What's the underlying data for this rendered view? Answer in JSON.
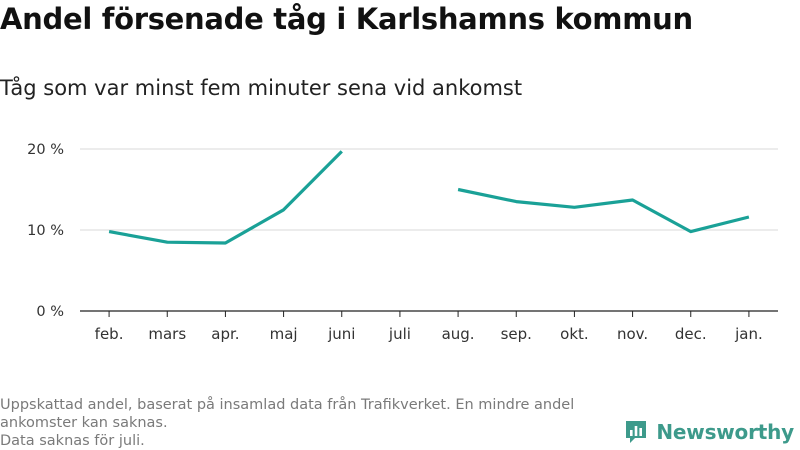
{
  "header": {
    "title": "Andel försenade tåg i Karlshamns kommun",
    "subtitle": "Tåg som var minst fem minuter sena vid ankomst"
  },
  "chart_data": {
    "type": "line",
    "title": "Andel försenade tåg i Karlshamns kommun",
    "subtitle": "Tåg som var minst fem minuter sena vid ankomst",
    "xlabel": "",
    "ylabel": "",
    "categories": [
      "feb.",
      "mars",
      "apr.",
      "maj",
      "juni",
      "juli",
      "aug.",
      "sep.",
      "okt.",
      "nov.",
      "dec.",
      "jan."
    ],
    "series": [
      {
        "values": [
          9.8,
          8.5,
          8.4,
          12.5,
          19.7,
          null,
          15.0,
          13.5,
          12.8,
          13.7,
          9.8,
          11.6
        ]
      }
    ],
    "y_ticks": [
      "0 %",
      "10 %",
      "20 %"
    ],
    "y_tick_values": [
      0,
      10,
      20
    ],
    "ylim": [
      0,
      20
    ],
    "grid": true,
    "line_color": "#1aa197",
    "grid_color": "#d9d9d9",
    "axis_color": "#222222"
  },
  "footer": {
    "lines": [
      "Uppskattad andel, baserat på insamlad data från Trafikverket. En mindre andel",
      "ankomster kan saknas.",
      "Data saknas för juli."
    ]
  },
  "logo": {
    "text": "Newsworthy",
    "color": "#3d9a8b",
    "icon": "newsworthy-bar-chart-icon"
  }
}
